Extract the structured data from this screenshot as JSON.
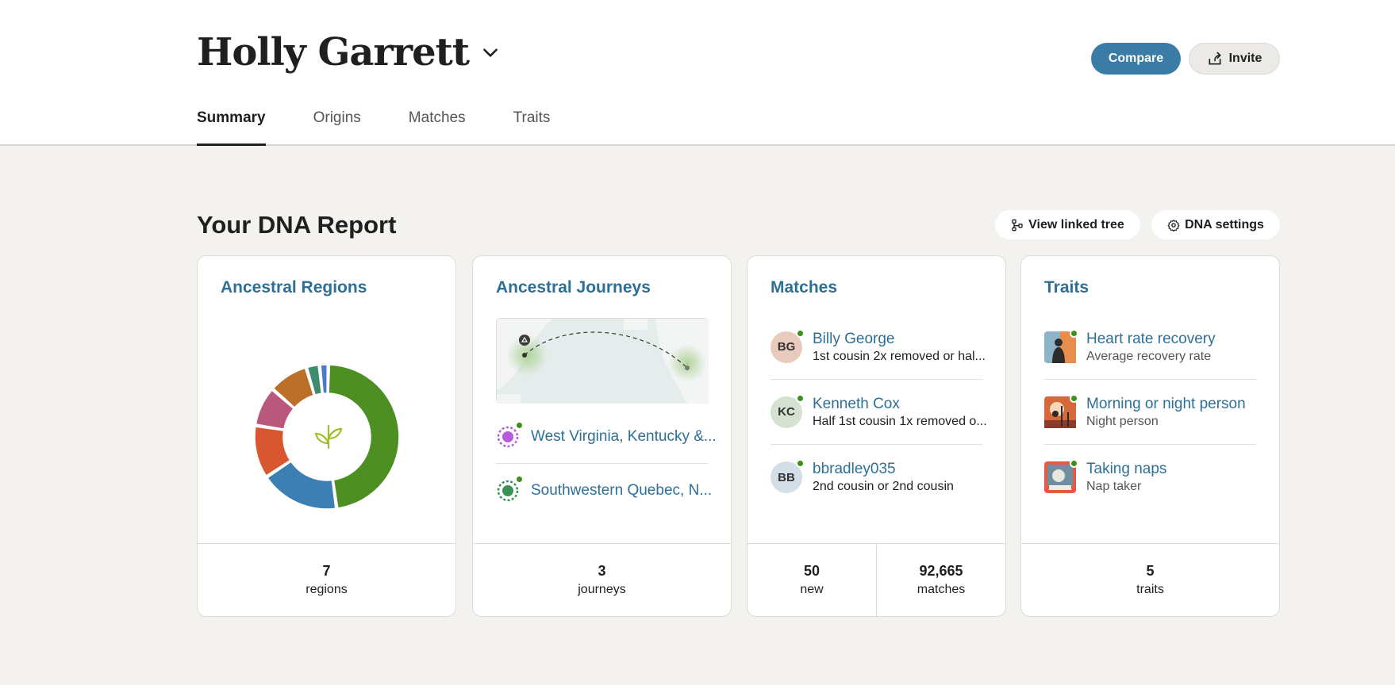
{
  "profile": {
    "name": "Holly Garrett"
  },
  "actions": {
    "compare": "Compare",
    "invite": "Invite"
  },
  "tabs": [
    {
      "label": "Summary",
      "active": true
    },
    {
      "label": "Origins",
      "active": false
    },
    {
      "label": "Matches",
      "active": false
    },
    {
      "label": "Traits",
      "active": false
    }
  ],
  "report": {
    "title": "Your DNA Report",
    "view_tree": "View linked tree",
    "dna_settings": "DNA settings"
  },
  "cards": {
    "regions": {
      "title": "Ancestral Regions",
      "count": "7",
      "count_label": "regions",
      "segments": [
        {
          "value": 48,
          "color": "#4e8f24"
        },
        {
          "value": 18,
          "color": "#3b7fb3"
        },
        {
          "value": 12,
          "color": "#d85630"
        },
        {
          "value": 9,
          "color": "#b9577c"
        },
        {
          "value": 9,
          "color": "#bb6f28"
        },
        {
          "value": 3,
          "color": "#3f8b70"
        },
        {
          "value": 2,
          "color": "#4b78c8"
        }
      ]
    },
    "journeys": {
      "title": "Ancestral Journeys",
      "items": [
        {
          "name": "West Virginia, Kentucky &...",
          "color": "#b65bde"
        },
        {
          "name": "Southwestern Quebec, N...",
          "color": "#3a9156"
        }
      ],
      "count": "3",
      "count_label": "journeys"
    },
    "matches": {
      "title": "Matches",
      "items": [
        {
          "initials": "BG",
          "name": "Billy George",
          "relation": "1st cousin 2x removed or hal...",
          "bg": "#e8cbbd"
        },
        {
          "initials": "KC",
          "name": "Kenneth Cox",
          "relation": "Half 1st cousin 1x removed o...",
          "bg": "#d5e2d2"
        },
        {
          "initials": "BB",
          "name": "bbradley035",
          "relation": "2nd cousin or 2nd cousin",
          "bg": "#d2dfe6"
        }
      ],
      "new_count": "50",
      "new_label": "new",
      "total_count": "92,665",
      "total_label": "matches"
    },
    "traits": {
      "title": "Traits",
      "items": [
        {
          "name": "Heart rate recovery",
          "sub": "Average recovery rate"
        },
        {
          "name": "Morning or night person",
          "sub": "Night person"
        },
        {
          "name": "Taking naps",
          "sub": "Nap taker"
        }
      ],
      "count": "5",
      "count_label": "traits"
    }
  },
  "colors": {
    "accent": "#3a7ca5",
    "link": "#2e6f96",
    "online": "#3d8f1d"
  }
}
